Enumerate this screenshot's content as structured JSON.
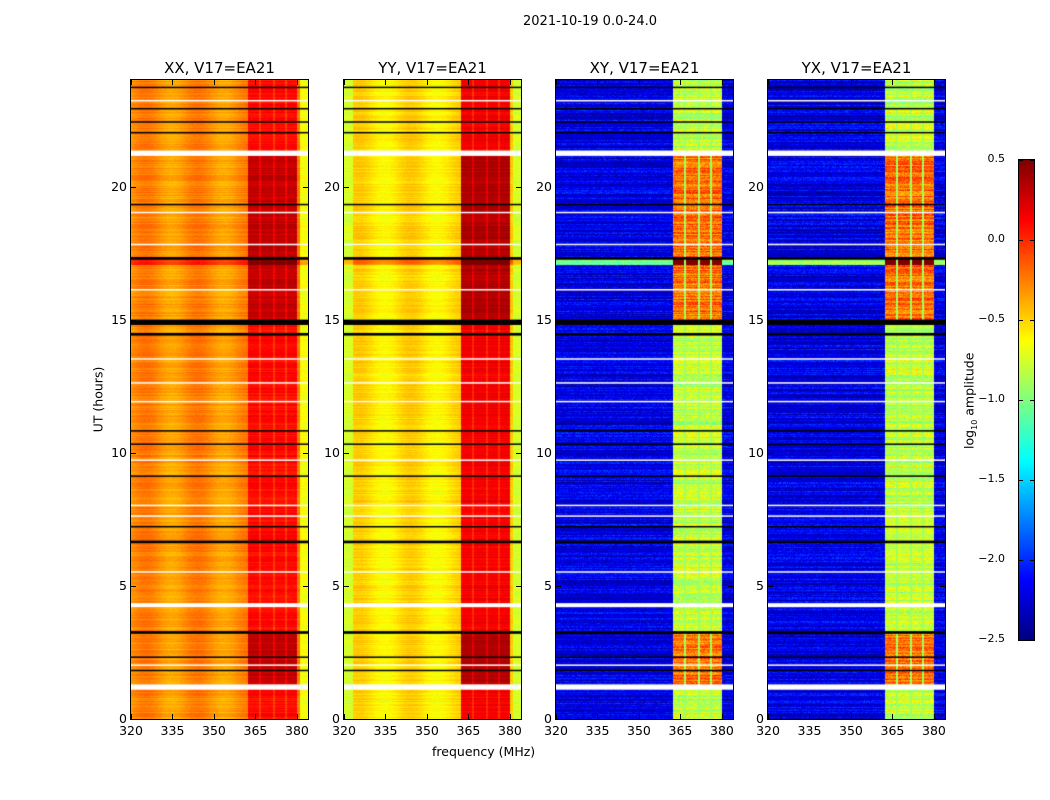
{
  "figure": {
    "suptitle": "2021-10-19 0.0-24.0",
    "xlabel": "frequency (MHz)",
    "ylabel": "UT (hours)"
  },
  "chart_data": {
    "type": "heatmap",
    "title": "2021-10-19 0.0-24.0",
    "xlabel": "frequency (MHz)",
    "ylabel": "UT (hours)",
    "xlim": [
      320,
      384
    ],
    "ylim": [
      0,
      24
    ],
    "xticks": [
      "320",
      "335",
      "350",
      "365",
      "380"
    ],
    "xtick_values": [
      320,
      335,
      350,
      365,
      380
    ],
    "yticks": [
      "0",
      "5",
      "10",
      "15",
      "20"
    ],
    "ytick_values": [
      0,
      5,
      10,
      15,
      20
    ],
    "panels": [
      {
        "title": "XX, V17=EA21",
        "base_level": -0.3,
        "band_level": 0.1,
        "edge_level": -0.65
      },
      {
        "title": "YY, V17=EA21",
        "base_level": -0.55,
        "band_level": 0.15,
        "edge_level": -0.75
      },
      {
        "title": "XY, V17=EA21",
        "base_level": -2.2,
        "band_level": -0.8,
        "edge_level": -2.2
      },
      {
        "title": "YX, V17=EA21",
        "base_level": -2.2,
        "band_level": -0.8,
        "edge_level": -2.2
      }
    ],
    "band_range_mhz": [
      362,
      380
    ],
    "flagged_white_hours": [
      [
        21.15,
        21.35
      ],
      [
        1.1,
        1.3
      ],
      [
        4.2,
        4.35
      ],
      [
        16.1,
        16.15
      ],
      [
        19.0,
        19.05
      ],
      [
        17.8,
        17.85
      ],
      [
        12.6,
        12.65
      ],
      [
        11.9,
        11.95
      ],
      [
        23.2,
        23.25
      ],
      [
        8.0,
        8.05
      ],
      [
        7.6,
        7.65
      ],
      [
        2.0,
        2.05
      ],
      [
        13.5,
        13.55
      ],
      [
        5.5,
        5.55
      ],
      [
        9.7,
        9.75
      ]
    ],
    "flagged_black_hours": [
      [
        23.7,
        23.75
      ],
      [
        22.9,
        22.95
      ],
      [
        22.4,
        22.45
      ],
      [
        22.0,
        22.05
      ],
      [
        17.25,
        17.35
      ],
      [
        14.8,
        15.0
      ],
      [
        14.4,
        14.5
      ],
      [
        10.8,
        10.85
      ],
      [
        10.3,
        10.35
      ],
      [
        9.1,
        9.15
      ],
      [
        6.6,
        6.7
      ],
      [
        3.2,
        3.3
      ],
      [
        2.3,
        2.35
      ],
      [
        1.8,
        1.85
      ],
      [
        19.3,
        19.35
      ],
      [
        7.2,
        7.25
      ]
    ],
    "colorbar": {
      "label": "log10 amplitude",
      "label_main": "log",
      "label_sub": "10",
      "label_rest": " amplitude",
      "ticks": [
        "0.5",
        "0.0",
        "−0.5",
        "−1.0",
        "−1.5",
        "−2.0",
        "−2.5"
      ],
      "tick_values": [
        0.5,
        0.0,
        -0.5,
        -1.0,
        -1.5,
        -2.0,
        -2.5
      ],
      "range": [
        -2.5,
        0.5
      ],
      "colormap": "jet"
    }
  }
}
